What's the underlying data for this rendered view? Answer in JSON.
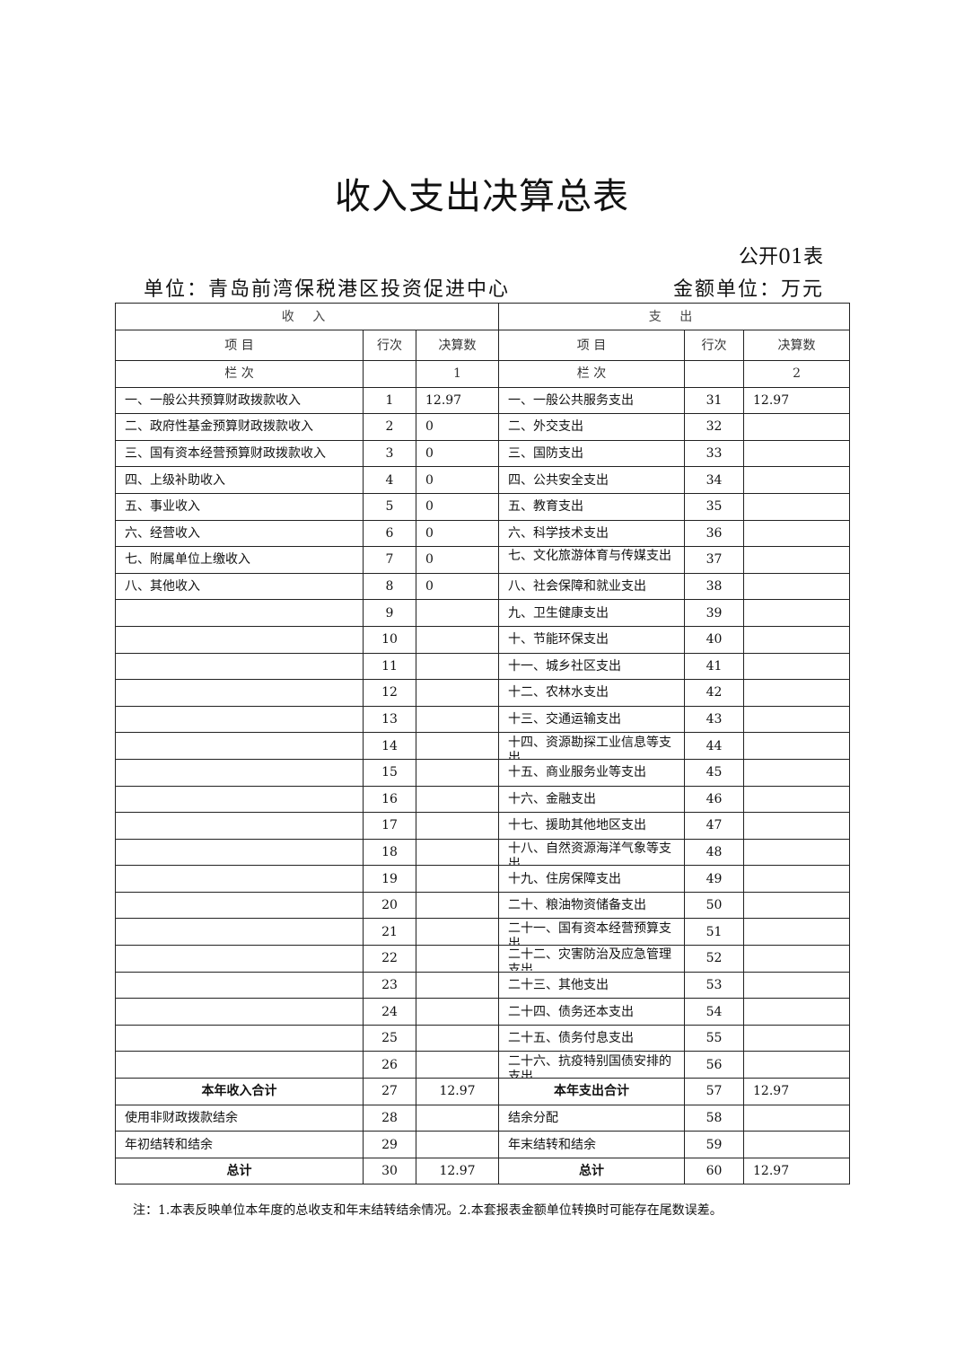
{
  "title": "收入支出决算总表",
  "table_code": "公开01表",
  "unit_label": "单位：青岛前湾保税港区投资促进中心",
  "money_unit": "金额单位：万元",
  "headers": {
    "income": "收 入",
    "expense": "支 出",
    "item": "项  目",
    "row_no": "行次",
    "amount": "决算数",
    "column_label": "栏  次",
    "income_col": "1",
    "expense_col": "2"
  },
  "rows": [
    {
      "in_item": "一、一般公共预算财政拨款收入",
      "in_no": "1",
      "in_amt": "12.97",
      "ex_item": "一、一般公共服务支出",
      "ex_no": "31",
      "ex_amt": "12.97"
    },
    {
      "in_item": "二、政府性基金预算财政拨款收入",
      "in_no": "2",
      "in_amt": "0",
      "ex_item": "二、外交支出",
      "ex_no": "32",
      "ex_amt": ""
    },
    {
      "in_item": "三、国有资本经营预算财政拨款收入",
      "in_no": "3",
      "in_amt": "0",
      "ex_item": "三、国防支出",
      "ex_no": "33",
      "ex_amt": ""
    },
    {
      "in_item": "四、上级补助收入",
      "in_no": "4",
      "in_amt": "0",
      "ex_item": "四、公共安全支出",
      "ex_no": "34",
      "ex_amt": ""
    },
    {
      "in_item": "五、事业收入",
      "in_no": "5",
      "in_amt": "0",
      "ex_item": "五、教育支出",
      "ex_no": "35",
      "ex_amt": ""
    },
    {
      "in_item": "六、经营收入",
      "in_no": "6",
      "in_amt": "0",
      "ex_item": "六、科学技术支出",
      "ex_no": "36",
      "ex_amt": ""
    },
    {
      "in_item": "七、附属单位上缴收入",
      "in_no": "7",
      "in_amt": "0",
      "ex_item": "七、文化旅游体育与传媒支出",
      "ex_no": "37",
      "ex_amt": "",
      "clip": true
    },
    {
      "in_item": "八、其他收入",
      "in_no": "8",
      "in_amt": "0",
      "ex_item": "八、社会保障和就业支出",
      "ex_no": "38",
      "ex_amt": ""
    },
    {
      "in_item": "",
      "in_no": "9",
      "in_amt": "",
      "ex_item": "九、卫生健康支出",
      "ex_no": "39",
      "ex_amt": ""
    },
    {
      "in_item": "",
      "in_no": "10",
      "in_amt": "",
      "ex_item": "十、节能环保支出",
      "ex_no": "40",
      "ex_amt": ""
    },
    {
      "in_item": "",
      "in_no": "11",
      "in_amt": "",
      "ex_item": "十一、城乡社区支出",
      "ex_no": "41",
      "ex_amt": ""
    },
    {
      "in_item": "",
      "in_no": "12",
      "in_amt": "",
      "ex_item": "十二、农林水支出",
      "ex_no": "42",
      "ex_amt": ""
    },
    {
      "in_item": "",
      "in_no": "13",
      "in_amt": "",
      "ex_item": "十三、交通运输支出",
      "ex_no": "43",
      "ex_amt": ""
    },
    {
      "in_item": "",
      "in_no": "14",
      "in_amt": "",
      "ex_item": "十四、资源勘探工业信息等支出",
      "ex_no": "44",
      "ex_amt": "",
      "clip": true
    },
    {
      "in_item": "",
      "in_no": "15",
      "in_amt": "",
      "ex_item": "十五、商业服务业等支出",
      "ex_no": "45",
      "ex_amt": ""
    },
    {
      "in_item": "",
      "in_no": "16",
      "in_amt": "",
      "ex_item": "十六、金融支出",
      "ex_no": "46",
      "ex_amt": ""
    },
    {
      "in_item": "",
      "in_no": "17",
      "in_amt": "",
      "ex_item": "十七、援助其他地区支出",
      "ex_no": "47",
      "ex_amt": ""
    },
    {
      "in_item": "",
      "in_no": "18",
      "in_amt": "",
      "ex_item": "十八、自然资源海洋气象等支出",
      "ex_no": "48",
      "ex_amt": "",
      "clip": true
    },
    {
      "in_item": "",
      "in_no": "19",
      "in_amt": "",
      "ex_item": "十九、住房保障支出",
      "ex_no": "49",
      "ex_amt": ""
    },
    {
      "in_item": "",
      "in_no": "20",
      "in_amt": "",
      "ex_item": "二十、粮油物资储备支出",
      "ex_no": "50",
      "ex_amt": ""
    },
    {
      "in_item": "",
      "in_no": "21",
      "in_amt": "",
      "ex_item": "二十一、国有资本经营预算支出",
      "ex_no": "51",
      "ex_amt": "",
      "clip": true
    },
    {
      "in_item": "",
      "in_no": "22",
      "in_amt": "",
      "ex_item": "二十二、灾害防治及应急管理支出",
      "ex_no": "52",
      "ex_amt": "",
      "clip": true
    },
    {
      "in_item": "",
      "in_no": "23",
      "in_amt": "",
      "ex_item": "二十三、其他支出",
      "ex_no": "53",
      "ex_amt": ""
    },
    {
      "in_item": "",
      "in_no": "24",
      "in_amt": "",
      "ex_item": "二十四、债务还本支出",
      "ex_no": "54",
      "ex_amt": ""
    },
    {
      "in_item": "",
      "in_no": "25",
      "in_amt": "",
      "ex_item": "二十五、债务付息支出",
      "ex_no": "55",
      "ex_amt": ""
    },
    {
      "in_item": "",
      "in_no": "26",
      "in_amt": "",
      "ex_item": "二十六、抗疫特别国债安排的支出",
      "ex_no": "56",
      "ex_amt": "",
      "clip": true
    },
    {
      "in_item": "本年收入合计",
      "in_no": "27",
      "in_amt": "12.97",
      "ex_item": "本年支出合计",
      "ex_no": "57",
      "ex_amt": "12.97",
      "bold": true
    },
    {
      "in_item": "使用非财政拨款结余",
      "in_no": "28",
      "in_amt": "",
      "ex_item": "结余分配",
      "ex_no": "58",
      "ex_amt": ""
    },
    {
      "in_item": "年初结转和结余",
      "in_no": "29",
      "in_amt": "",
      "ex_item": "年末结转和结余",
      "ex_no": "59",
      "ex_amt": ""
    },
    {
      "in_item": "总计",
      "in_no": "30",
      "in_amt": "12.97",
      "ex_item": "总计",
      "ex_no": "60",
      "ex_amt": "12.97",
      "bold": true
    }
  ],
  "note": "注：1.本表反映单位本年度的总收支和年末结转结余情况。2.本套报表金额单位转换时可能存在尾数误差。"
}
